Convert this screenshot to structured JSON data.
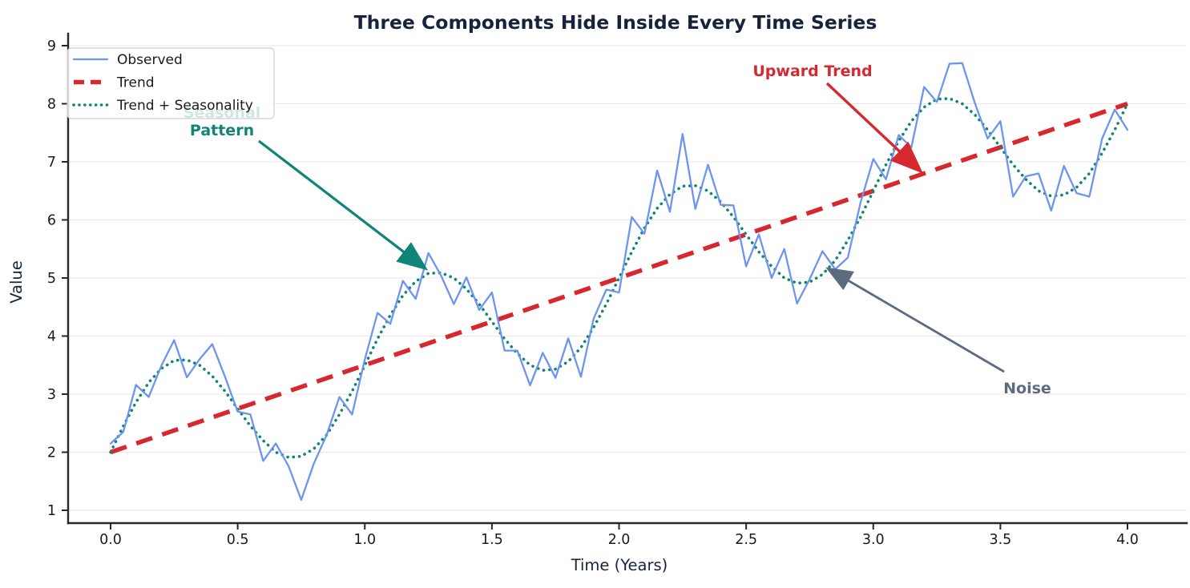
{
  "title": "Three Components Hide Inside Every Time Series",
  "axes": {
    "xlabel": "Time (Years)",
    "ylabel": "Value",
    "x_tick_labels": [
      "0.0",
      "0.5",
      "1.0",
      "1.5",
      "2.0",
      "2.5",
      "3.0",
      "3.5",
      "4.0"
    ],
    "x_tick_values": [
      0,
      0.5,
      1,
      1.5,
      2,
      2.5,
      3,
      3.5,
      4
    ],
    "y_tick_labels": [
      "1",
      "2",
      "3",
      "4",
      "5",
      "6",
      "7",
      "8",
      "9"
    ],
    "y_tick_values": [
      1,
      2,
      3,
      4,
      5,
      6,
      7,
      8,
      9
    ]
  },
  "colors": {
    "background": "#ffffff",
    "title_text": "#16233b",
    "axis_text": "#16233b",
    "tick_text": "#1b1b1b",
    "grid": "#e7e7eb",
    "spine": "#24292e",
    "observed": "#6d94ee",
    "trend": "#d7282f",
    "seasonal": "#0f8578",
    "noise_annotation": "#5d6b80"
  },
  "legend": {
    "position": "upper left",
    "items": [
      {
        "label": "Observed",
        "color": "#6d94ee",
        "style": "solid",
        "width": 2.3
      },
      {
        "label": "Trend",
        "color": "#d7282f",
        "style": "dashed",
        "width": 5.5
      },
      {
        "label": "Trend + Seasonality",
        "color": "#0f8578",
        "style": "dotted",
        "width": 3.6
      }
    ]
  },
  "annotations": [
    {
      "id": "seasonal-pattern",
      "lines": [
        "Seasonal",
        "Pattern"
      ],
      "color": "#0f8578",
      "arrow": {
        "from": [
          323,
          176
        ],
        "to": [
          528,
          333
        ],
        "width": 3.2
      }
    },
    {
      "id": "upward-trend",
      "label": "Upward Trend",
      "color": "#d7282f",
      "arrow": {
        "from": [
          1032,
          104
        ],
        "to": [
          1146,
          211
        ],
        "width": 3.4
      }
    },
    {
      "id": "noise",
      "label": "Noise",
      "color": "#5d6b80",
      "arrow": {
        "from": [
          1253,
          464
        ],
        "to": [
          1036,
          337
        ],
        "width": 2.8
      }
    }
  ],
  "chart_data": {
    "type": "line",
    "title": "Three Components Hide Inside Every Time Series",
    "xlabel": "Time (Years)",
    "ylabel": "Value",
    "xlim": [
      0,
      4
    ],
    "ylim": [
      1,
      9
    ],
    "grid": "horizontal",
    "legend_position": "upper left",
    "x": [
      0,
      0.05,
      0.1,
      0.15,
      0.2,
      0.25,
      0.3,
      0.35,
      0.4,
      0.45,
      0.5,
      0.55,
      0.6,
      0.65,
      0.7,
      0.75,
      0.8,
      0.85,
      0.9,
      0.95,
      1,
      1.05,
      1.1,
      1.15,
      1.2,
      1.25,
      1.3,
      1.35,
      1.4,
      1.45,
      1.5,
      1.55,
      1.6,
      1.65,
      1.7,
      1.75,
      1.8,
      1.85,
      1.9,
      1.95,
      2,
      2.05,
      2.1,
      2.15,
      2.2,
      2.25,
      2.3,
      2.35,
      2.4,
      2.45,
      2.5,
      2.55,
      2.6,
      2.65,
      2.7,
      2.75,
      2.8,
      2.85,
      2.9,
      2.95,
      3,
      3.05,
      3.1,
      3.15,
      3.2,
      3.25,
      3.3,
      3.35,
      3.4,
      3.45,
      3.5,
      3.55,
      3.6,
      3.65,
      3.7,
      3.75,
      3.8,
      3.85,
      3.9,
      3.95,
      4
    ],
    "series": [
      {
        "name": "Observed",
        "color": "#6d94ee",
        "style": "solid",
        "width": 2.3,
        "values": [
          2.15,
          2.35,
          3.16,
          2.95,
          3.49,
          3.93,
          3.29,
          3.6,
          3.86,
          3.3,
          2.7,
          2.65,
          1.85,
          2.15,
          1.76,
          1.18,
          1.81,
          2.3,
          2.95,
          2.65,
          3.6,
          4.4,
          4.21,
          4.95,
          4.64,
          5.43,
          5.04,
          4.55,
          5.01,
          4.45,
          4.75,
          3.75,
          3.75,
          3.15,
          3.71,
          3.28,
          3.96,
          3.3,
          4.3,
          4.8,
          4.75,
          6.05,
          5.76,
          6.85,
          6.14,
          7.48,
          6.19,
          6.95,
          6.26,
          6.25,
          5.2,
          5.75,
          5.0,
          5.5,
          4.56,
          4.98,
          5.46,
          5.15,
          5.35,
          6.3,
          7.05,
          6.7,
          7.46,
          7.25,
          8.29,
          8.03,
          8.69,
          8.7,
          8.01,
          7.4,
          7.7,
          6.4,
          6.75,
          6.8,
          6.16,
          6.93,
          6.46,
          6.4,
          7.4,
          7.9,
          7.55
        ]
      },
      {
        "name": "Trend",
        "color": "#d7282f",
        "style": "dashed",
        "width": 5.5,
        "x": [
          0,
          4
        ],
        "values": [
          2,
          8
        ]
      },
      {
        "name": "Trend + Seasonality",
        "color": "#0f8578",
        "style": "dotted",
        "width": 3.6,
        "values": [
          2.0,
          2.45,
          2.86,
          3.2,
          3.44,
          3.58,
          3.59,
          3.5,
          3.31,
          3.05,
          2.75,
          2.45,
          2.2,
          2.0,
          1.91,
          1.93,
          2.06,
          2.3,
          2.65,
          3.05,
          3.5,
          3.95,
          4.36,
          4.7,
          4.94,
          5.08,
          5.09,
          5.0,
          4.81,
          4.55,
          4.25,
          3.95,
          3.7,
          3.5,
          3.41,
          3.43,
          3.56,
          3.8,
          4.15,
          4.55,
          5.0,
          5.45,
          5.86,
          6.2,
          6.44,
          6.58,
          6.59,
          6.5,
          6.31,
          6.05,
          5.75,
          5.45,
          5.2,
          5.0,
          4.91,
          4.93,
          5.06,
          5.3,
          5.65,
          6.05,
          6.5,
          6.95,
          7.36,
          7.7,
          7.94,
          8.08,
          8.09,
          8.0,
          7.81,
          7.55,
          7.25,
          6.95,
          6.7,
          6.5,
          6.41,
          6.43,
          6.56,
          6.8,
          7.15,
          7.55,
          8.0
        ]
      }
    ]
  }
}
